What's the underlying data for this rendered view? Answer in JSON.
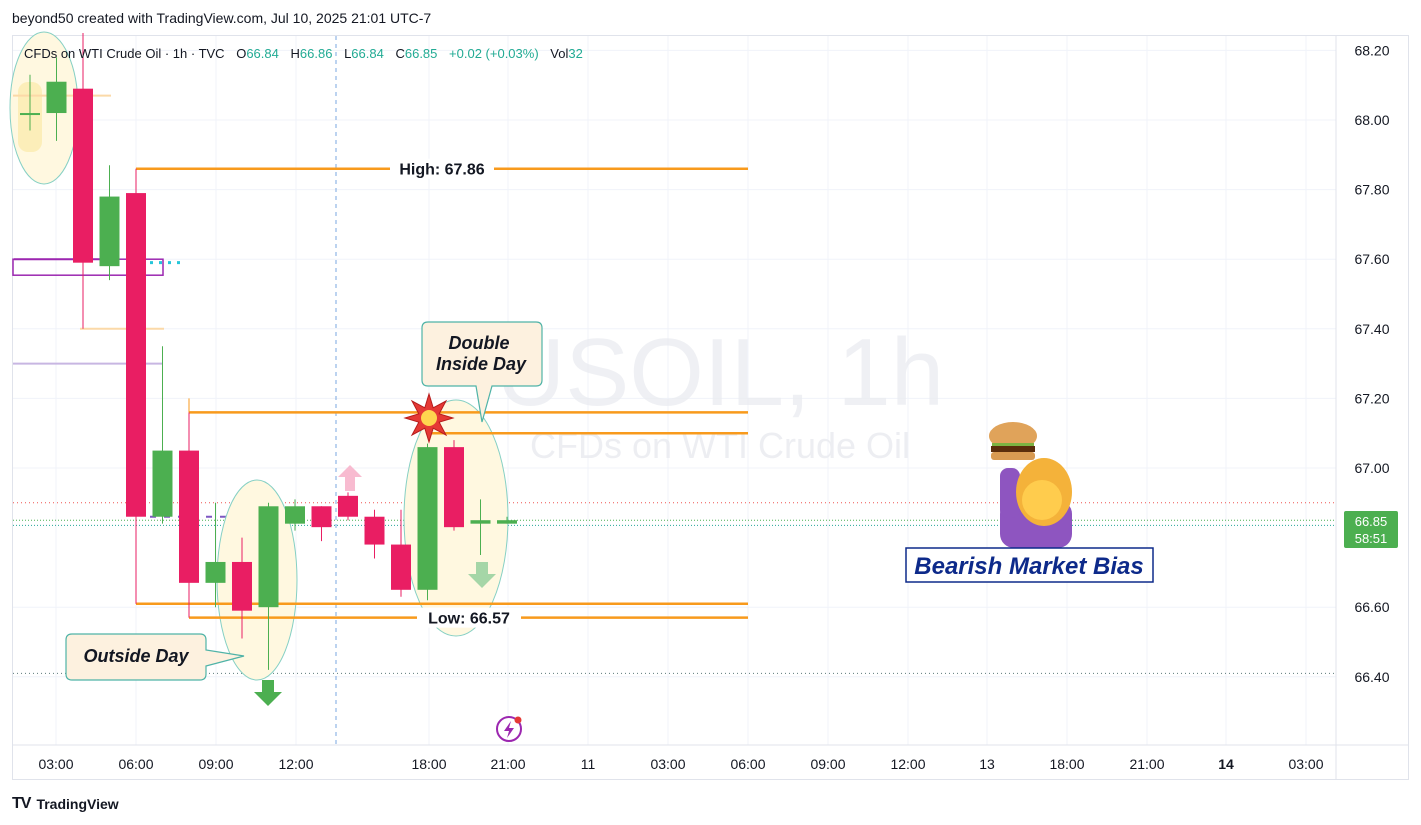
{
  "header": {
    "attribution": "beyond50 created with TradingView.com, Jul 10, 2025 21:01 UTC-7"
  },
  "legend": {
    "symbol_desc": "CFDs on WTI Crude Oil · 1h · TVC",
    "o_label": "O",
    "o_value": "66.84",
    "h_label": "H",
    "h_value": "66.86",
    "l_label": "L",
    "l_value": "66.84",
    "c_label": "C",
    "c_value": "66.85",
    "change": "+0.02 (+0.03%)",
    "vol_label": "Vol",
    "vol_value": "32"
  },
  "watermark": {
    "symbol": "USOIL, 1h",
    "description": "CFDs on WTI Crude Oil"
  },
  "price_badge": {
    "price": "66.85",
    "countdown": "58:51",
    "color": "#4caf50"
  },
  "footer": {
    "brand": "TradingView",
    "logo": "TV"
  },
  "colors": {
    "up": "#4caf50",
    "down": "#e91e63",
    "level": "#f89a1c",
    "callout_fill": "#fdf1df",
    "callout_border": "#4fb3a7",
    "bias_text": "#0d2a8a"
  },
  "chart_data": {
    "type": "candlestick",
    "y_axis": {
      "ticks": [
        68.2,
        68.0,
        67.8,
        67.6,
        67.4,
        67.2,
        67.0,
        66.6,
        66.4
      ],
      "ylim": [
        66.2,
        68.25
      ]
    },
    "x_axis": {
      "ticks": [
        "03:00",
        "06:00",
        "09:00",
        "12:00",
        "18:00",
        "21:00",
        "11",
        "03:00",
        "06:00",
        "09:00",
        "12:00",
        "13",
        "18:00",
        "21:00",
        "14",
        "03:00"
      ]
    },
    "candles": [
      {
        "o": 68.02,
        "h": 68.13,
        "l": 67.97,
        "c": 68.02
      },
      {
        "o": 68.02,
        "h": 68.18,
        "l": 67.94,
        "c": 68.11
      },
      {
        "o": 68.09,
        "h": 68.25,
        "l": 67.4,
        "c": 67.59
      },
      {
        "o": 67.58,
        "h": 67.87,
        "l": 67.54,
        "c": 67.78
      },
      {
        "o": 67.79,
        "h": 67.86,
        "l": 66.61,
        "c": 66.86
      },
      {
        "o": 66.86,
        "h": 67.35,
        "l": 66.84,
        "c": 67.05
      },
      {
        "o": 67.05,
        "h": 67.16,
        "l": 66.57,
        "c": 66.67
      },
      {
        "o": 66.67,
        "h": 66.9,
        "l": 66.6,
        "c": 66.73
      },
      {
        "o": 66.73,
        "h": 66.8,
        "l": 66.51,
        "c": 66.59
      },
      {
        "o": 66.6,
        "h": 66.9,
        "l": 66.42,
        "c": 66.89
      },
      {
        "o": 66.84,
        "h": 66.91,
        "l": 66.82,
        "c": 66.89
      },
      {
        "o": 66.89,
        "h": 66.89,
        "l": 66.79,
        "c": 66.83
      },
      {
        "o": 66.92,
        "h": 66.93,
        "l": 66.85,
        "c": 66.86
      },
      {
        "o": 66.86,
        "h": 66.88,
        "l": 66.74,
        "c": 66.78
      },
      {
        "o": 66.78,
        "h": 66.88,
        "l": 66.63,
        "c": 66.65
      },
      {
        "o": 66.65,
        "h": 67.07,
        "l": 66.62,
        "c": 67.06
      },
      {
        "o": 67.06,
        "h": 67.08,
        "l": 66.82,
        "c": 66.83
      },
      {
        "o": 66.84,
        "h": 66.91,
        "l": 66.75,
        "c": 66.85
      },
      {
        "o": 66.84,
        "h": 66.86,
        "l": 66.84,
        "c": 66.85
      }
    ],
    "levels": [
      {
        "price": 67.86,
        "label": "High: 67.86"
      },
      {
        "price": 67.16,
        "label": ""
      },
      {
        "price": 67.1,
        "label": ""
      },
      {
        "price": 66.61,
        "label": ""
      },
      {
        "price": 66.57,
        "label": "Low: 66.57"
      }
    ],
    "annotations": [
      {
        "text": "Outside Day"
      },
      {
        "text_line1": "Double",
        "text_line2": "Inside Day"
      },
      {
        "text": "Bearish Market Bias"
      }
    ]
  }
}
